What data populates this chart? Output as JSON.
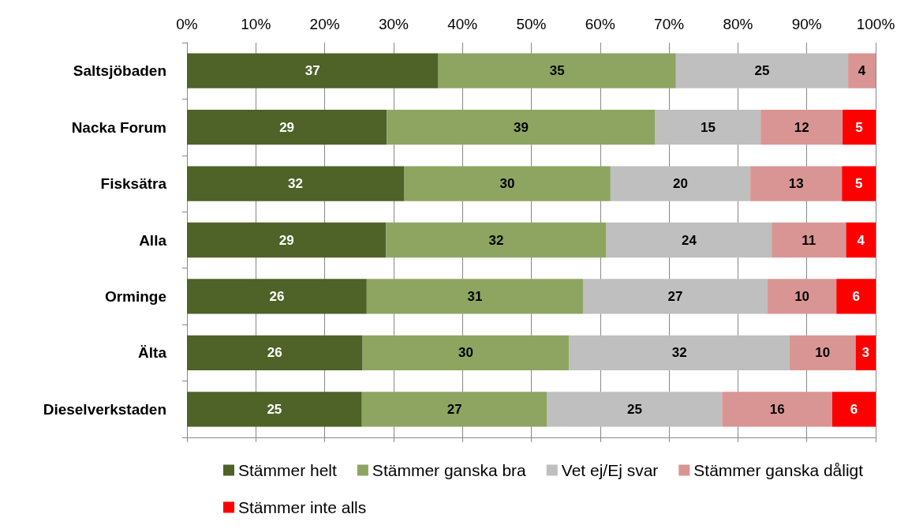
{
  "chart_data": {
    "type": "bar",
    "orientation": "horizontal",
    "stacked": true,
    "categories": [
      "Saltsjöbaden",
      "Nacka Forum",
      "Fisksätra",
      "Alla",
      "Orminge",
      "Älta",
      "Dieselverkstaden"
    ],
    "xlim": [
      0,
      100
    ],
    "xticks": [
      {
        "value": 0,
        "label": "0%"
      },
      {
        "value": 10,
        "label": "10%"
      },
      {
        "value": 20,
        "label": "20%"
      },
      {
        "value": 30,
        "label": "30%"
      },
      {
        "value": 40,
        "label": "40%"
      },
      {
        "value": 50,
        "label": "50%"
      },
      {
        "value": 60,
        "label": "60%"
      },
      {
        "value": 70,
        "label": "70%"
      },
      {
        "value": 80,
        "label": "80%"
      },
      {
        "value": 90,
        "label": "90%"
      },
      {
        "value": 100,
        "label": "100%"
      }
    ],
    "grid": "x",
    "legend": "bottom",
    "series": [
      {
        "name": "Stämmer helt",
        "color": "#4f6228",
        "values": [
          36.5,
          29,
          31.5,
          28.9,
          26.1,
          25.5,
          25.4
        ],
        "value_labels": [
          "37",
          "29",
          "32",
          "29",
          "26",
          "26",
          "25"
        ]
      },
      {
        "name": "Stämmer ganska bra",
        "color": "#8ea562",
        "values": [
          34.5,
          39,
          30,
          32,
          31.4,
          30,
          26.9
        ],
        "value_labels": [
          "35",
          "39",
          "30",
          "32",
          "31",
          "30",
          "27"
        ]
      },
      {
        "name": "Vet ej/Ej svar",
        "color": "#bfbfbf",
        "values": [
          25,
          15.3,
          20.3,
          24,
          26.8,
          32,
          25.4
        ],
        "value_labels": [
          "25",
          "15",
          "20",
          "24",
          "27",
          "32",
          "25"
        ]
      },
      {
        "name": "Stämmer ganska dåligt",
        "color": "#d99594",
        "values": [
          4,
          11.9,
          13.3,
          10.8,
          10,
          9.6,
          16
        ],
        "value_labels": [
          "4",
          "12",
          "13",
          "11",
          "10",
          "10",
          "16"
        ]
      },
      {
        "name": "Stämmer inte alls",
        "color": "#ff0000",
        "values": [
          null,
          4.8,
          4.9,
          4.3,
          5.7,
          2.9,
          6.3
        ],
        "value_labels": [
          null,
          "5",
          "5",
          "4",
          "6",
          "3",
          "6"
        ]
      }
    ]
  }
}
